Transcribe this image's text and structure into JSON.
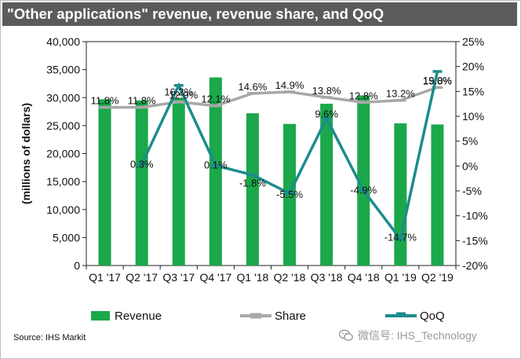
{
  "title": "\"Other applications\" revenue, revenue share, and QoQ",
  "source": "Source: IHS Markit",
  "watermark": "微信号: IHS_Technology",
  "colors": {
    "bar": "#1aa84a",
    "share_line": "#a8a8a8",
    "qoq_line": "#1c8c8c",
    "title_bg": "#5a5b5d"
  },
  "chart_data": {
    "type": "bar",
    "title": "\"Other applications\" revenue, revenue share, and QoQ",
    "categories": [
      "Q1 '17",
      "Q2 '17",
      "Q3 '17",
      "Q4 '17",
      "Q1 '18",
      "Q2 '18",
      "Q3 '18",
      "Q4 '18",
      "Q1 '19",
      "Q2 '19"
    ],
    "ylabel": "(millions of dollars)",
    "ylim": [
      0,
      40000
    ],
    "y_ticks": [
      "0",
      "5,000",
      "10,000",
      "15,000",
      "20,000",
      "25,000",
      "30,000",
      "35,000",
      "40,000"
    ],
    "y2lim": [
      -20,
      25
    ],
    "y2_ticks": [
      "-20%",
      "-15%",
      "-10%",
      "-5%",
      "0%",
      "5%",
      "10%",
      "15%",
      "20%",
      "25%"
    ],
    "series": [
      {
        "name": "Revenue",
        "type": "bar",
        "axis": "left",
        "values": [
          29700,
          29500,
          29900,
          33600,
          27200,
          25300,
          28900,
          30400,
          25400,
          25200
        ]
      },
      {
        "name": "Share",
        "type": "line",
        "axis": "right",
        "values": [
          11.8,
          11.8,
          12.9,
          12.1,
          14.6,
          14.9,
          13.8,
          12.8,
          13.2,
          15.8
        ],
        "labels": [
          "11.8%",
          "11.8%",
          "12.9%",
          "12.1%",
          "14.6%",
          "14.9%",
          "13.8%",
          "12.8%",
          "13.2%",
          "15.8%"
        ]
      },
      {
        "name": "QoQ",
        "type": "line",
        "axis": "right",
        "values": [
          null,
          0.3,
          16.2,
          0.1,
          -1.8,
          -5.5,
          9.6,
          -4.9,
          -14.7,
          19.0
        ],
        "labels": [
          "",
          "0.3%",
          "16.2%",
          "0.1%",
          "-1.8%",
          "-5.5%",
          "9.6%",
          "-4.9%",
          "-14.7%",
          "19.0%"
        ]
      }
    ],
    "legend": [
      "Revenue",
      "Share",
      "QoQ"
    ],
    "legend_position": "bottom",
    "grid": false
  }
}
